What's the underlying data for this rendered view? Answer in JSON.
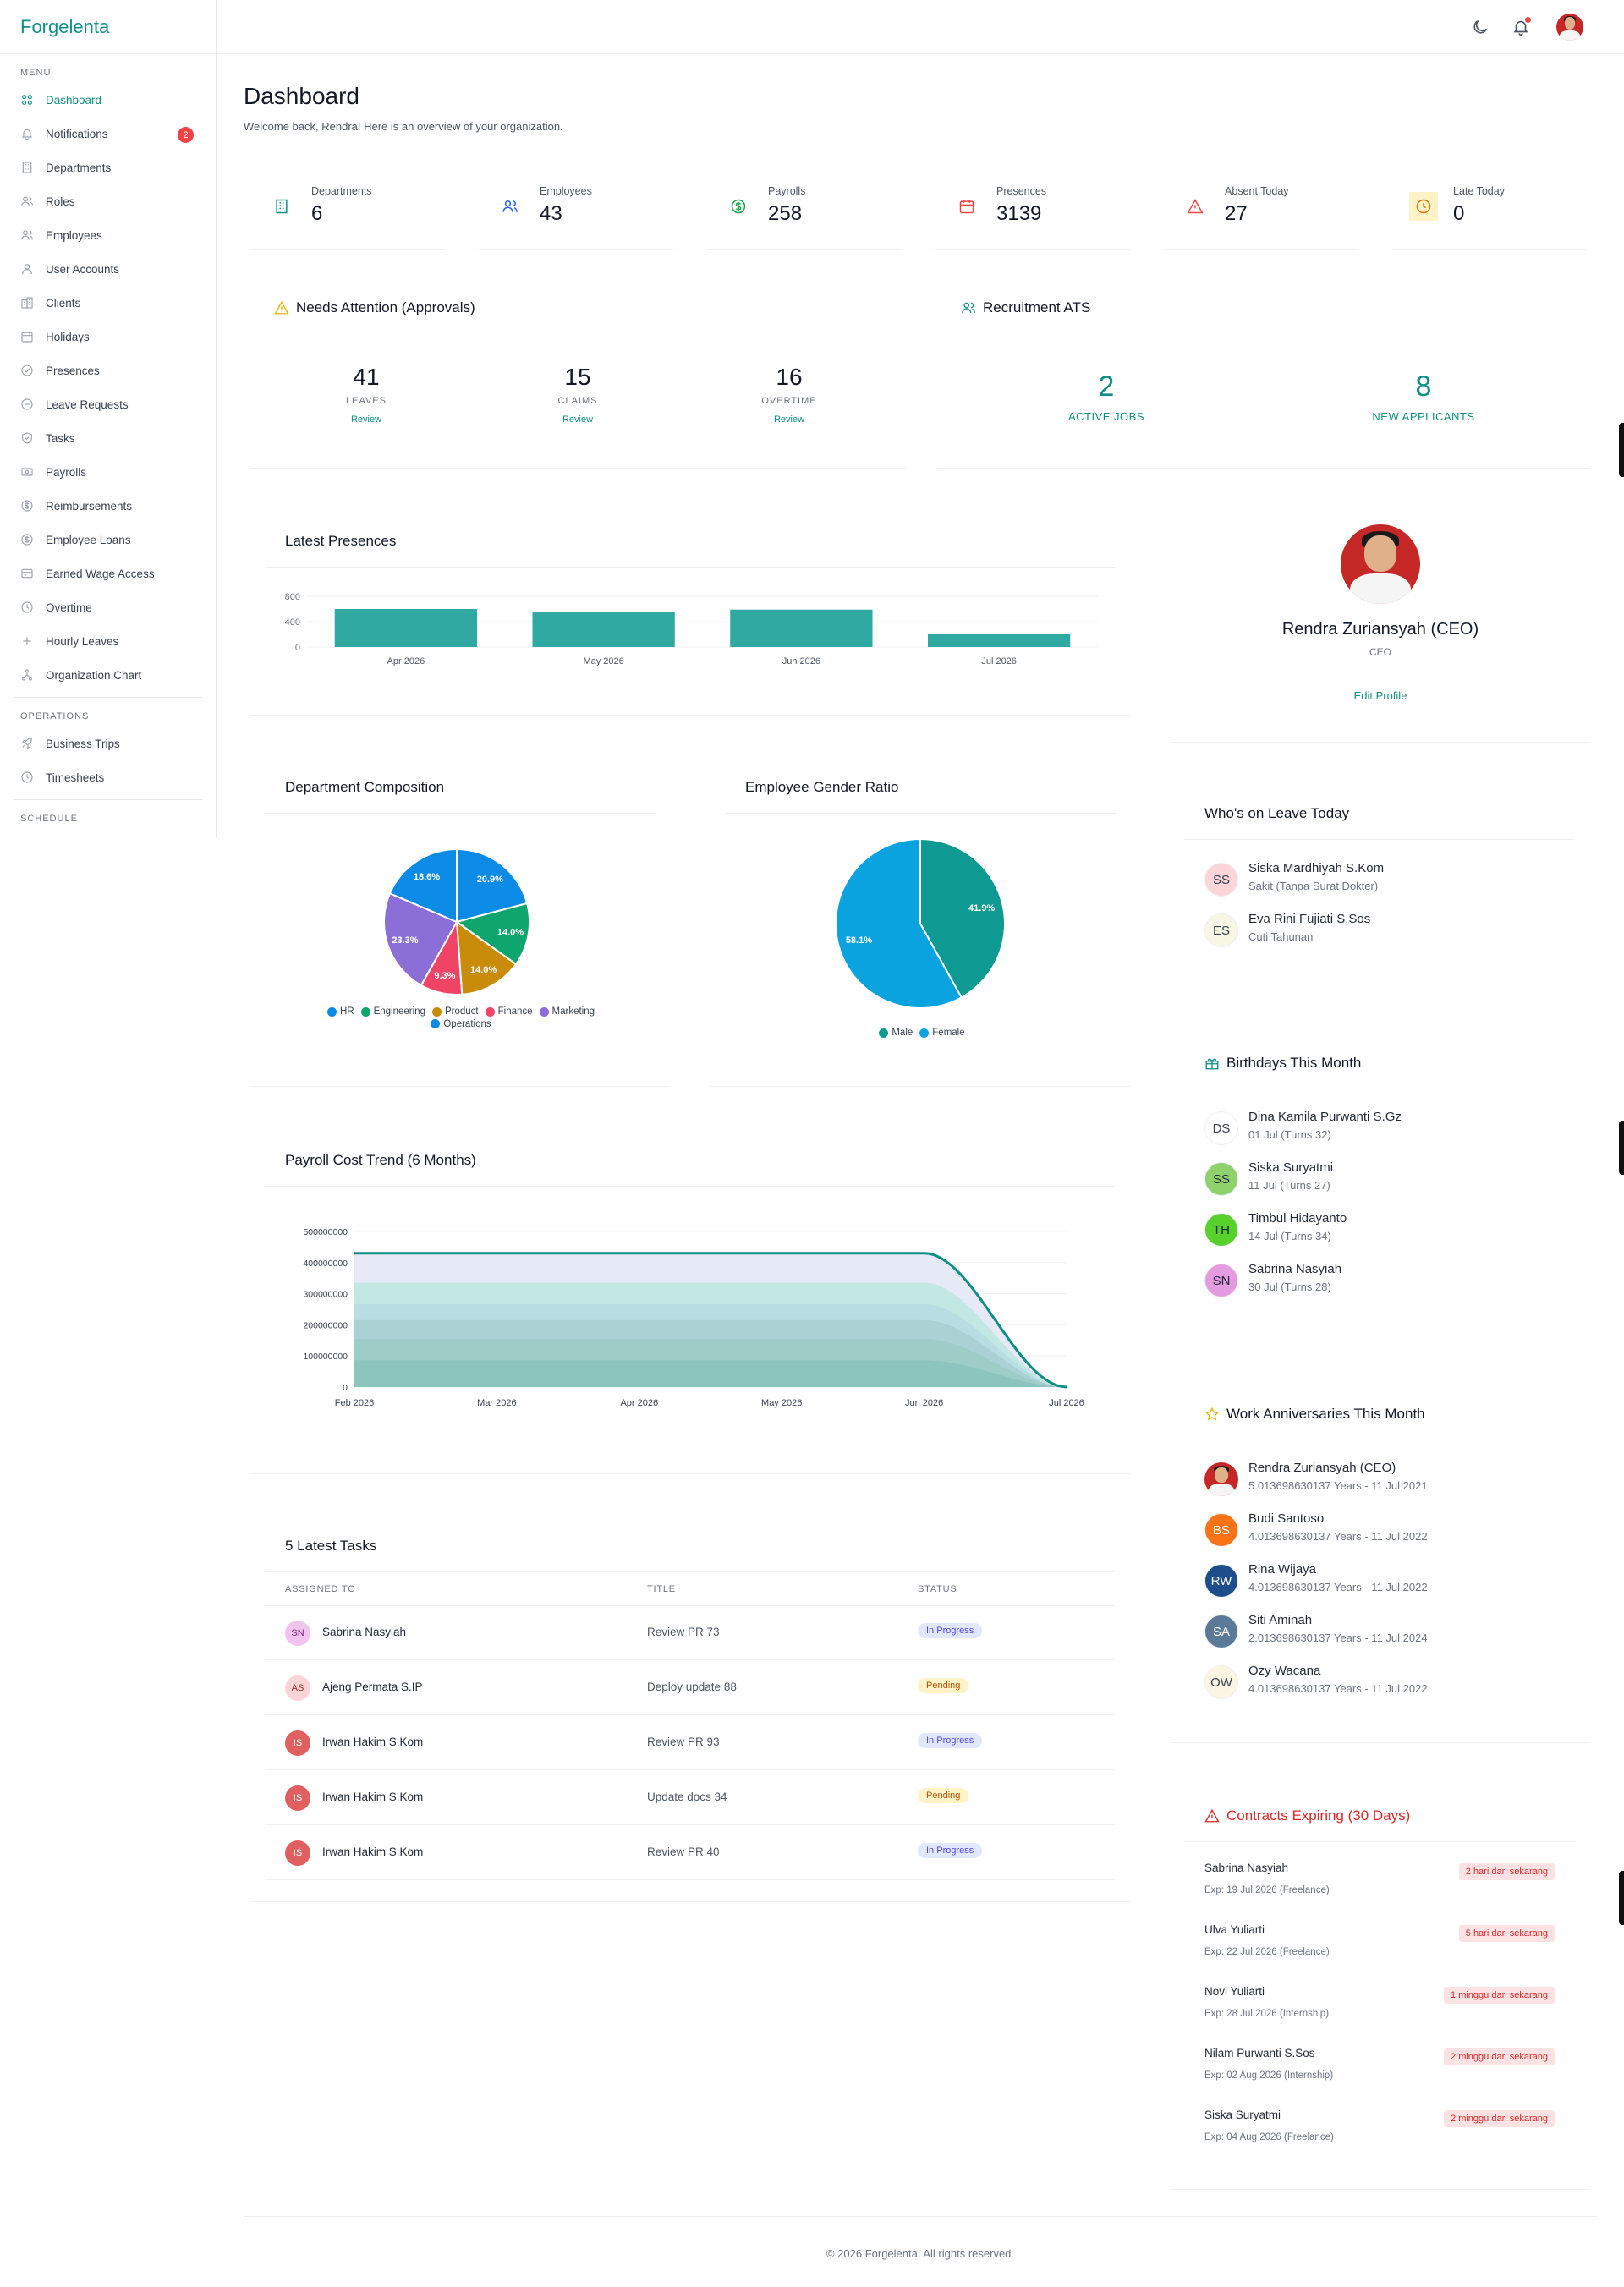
{
  "app": {
    "name": "Forgelenta"
  },
  "sidebar": {
    "menu_label": "MENU",
    "items": [
      {
        "label": "Dashboard",
        "icon": "grid-icon"
      },
      {
        "label": "Notifications",
        "icon": "bell-icon",
        "badge": "2"
      },
      {
        "label": "Departments",
        "icon": "building-icon"
      },
      {
        "label": "Roles",
        "icon": "users-icon"
      },
      {
        "label": "Employees",
        "icon": "people-icon"
      },
      {
        "label": "User Accounts",
        "icon": "user-icon"
      },
      {
        "label": "Clients",
        "icon": "office-icon"
      },
      {
        "label": "Holidays",
        "icon": "calendar-icon"
      },
      {
        "label": "Presences",
        "icon": "check-circle-icon"
      },
      {
        "label": "Leave Requests",
        "icon": "minus-circle-icon"
      },
      {
        "label": "Tasks",
        "icon": "shield-icon"
      },
      {
        "label": "Payrolls",
        "icon": "money-icon"
      },
      {
        "label": "Reimbursements",
        "icon": "dollar-circle-icon"
      },
      {
        "label": "Employee Loans",
        "icon": "dollar-circle-icon"
      },
      {
        "label": "Earned Wage Access",
        "icon": "card-icon"
      },
      {
        "label": "Overtime",
        "icon": "clock-icon"
      },
      {
        "label": "Hourly Leaves",
        "icon": "plus-icon"
      },
      {
        "label": "Organization Chart",
        "icon": "org-chart-icon"
      }
    ],
    "operations_label": "OPERATIONS",
    "operations": [
      {
        "label": "Business Trips",
        "icon": "rocket-icon"
      },
      {
        "label": "Timesheets",
        "icon": "clock-icon"
      }
    ],
    "schedule_label": "SCHEDULE"
  },
  "header": {
    "title": "Dashboard",
    "subtitle": "Welcome back, Rendra! Here is an overview of your organization."
  },
  "stats": [
    {
      "label": "Departments",
      "value": "6",
      "icon": "building-icon",
      "color": "#0f8f86"
    },
    {
      "label": "Employees",
      "value": "43",
      "icon": "people-icon",
      "color": "#2563eb"
    },
    {
      "label": "Payrolls",
      "value": "258",
      "icon": "dollar-circle-icon",
      "color": "#16a34a"
    },
    {
      "label": "Presences",
      "value": "3139",
      "icon": "calendar-icon",
      "color": "#ef4444"
    },
    {
      "label": "Absent Today",
      "value": "27",
      "icon": "warning-icon",
      "color": "#ef4444"
    },
    {
      "label": "Late Today",
      "value": "0",
      "icon": "clock-icon",
      "color": "#d97706"
    }
  ],
  "attention": {
    "title": "Needs Attention (Approvals)",
    "items": [
      {
        "value": "41",
        "label": "LEAVES",
        "link": "Review"
      },
      {
        "value": "15",
        "label": "CLAIMS",
        "link": "Review"
      },
      {
        "value": "16",
        "label": "OVERTIME",
        "link": "Review"
      }
    ]
  },
  "recruitment": {
    "title": "Recruitment ATS",
    "items": [
      {
        "value": "2",
        "label": "ACTIVE JOBS"
      },
      {
        "value": "8",
        "label": "NEW APPLICANTS"
      }
    ]
  },
  "profile": {
    "name": "Rendra Zuriansyah (CEO)",
    "role": "CEO",
    "edit": "Edit Profile"
  },
  "presences_chart": {
    "title": "Latest Presences",
    "chart_data": {
      "type": "bar",
      "categories": [
        "Apr 2026",
        "May 2026",
        "Jun 2026",
        "Jul 2026"
      ],
      "values": [
        600,
        550,
        590,
        200
      ],
      "yticks": [
        "800",
        "400",
        "0"
      ],
      "ylim": [
        0,
        800
      ],
      "color": "#2fa9a2"
    }
  },
  "dept_chart": {
    "title": "Department Composition",
    "chart_data": {
      "type": "pie",
      "labels": [
        "HR",
        "Engineering",
        "Product",
        "Finance",
        "Marketing",
        "Operations"
      ],
      "values": [
        20.9,
        14.0,
        14.0,
        9.3,
        23.3,
        18.6
      ],
      "value_labels": [
        "20.9%",
        "14.0%",
        "14.0%",
        "9.3%",
        "23.3%",
        "18.6%"
      ],
      "colors": [
        "#0b8ae6",
        "#0ea66d",
        "#c98b0a",
        "#ef4465",
        "#8b6fd6",
        "#0b8ae6"
      ],
      "legend": [
        "HR",
        "Engineering",
        "Product",
        "Finance",
        "Marketing",
        "Operations"
      ]
    }
  },
  "gender_chart": {
    "title": "Employee Gender Ratio",
    "chart_data": {
      "type": "pie",
      "labels": [
        "Male",
        "Female"
      ],
      "values": [
        41.9,
        58.1
      ],
      "value_labels": [
        "41.9%",
        "58.1%"
      ],
      "colors": [
        "#0e9a92",
        "#0aa3e0"
      ]
    }
  },
  "payroll_chart": {
    "title": "Payroll Cost Trend (6 Months)",
    "chart_data": {
      "type": "area",
      "categories": [
        "Feb 2026",
        "Mar 2026",
        "Apr 2026",
        "May 2026",
        "Jun 2026",
        "Jul 2026"
      ],
      "yticks": [
        "500000000",
        "400000000",
        "300000000",
        "200000000",
        "100000000",
        "0"
      ],
      "ylim": [
        0,
        500000000
      ],
      "series_top": [
        430000000,
        430000000,
        430000000,
        430000000,
        430000000,
        0
      ]
    }
  },
  "tasks": {
    "title": "5 Latest Tasks",
    "columns": [
      "ASSIGNED TO",
      "TITLE",
      "STATUS"
    ],
    "rows": [
      {
        "initials": "SN",
        "name": "Sabrina Nasyiah",
        "title": "Review PR 73",
        "status": "In Progress",
        "avatar_bg": "#f0c4ee",
        "avatar_fg": "#7a2a78"
      },
      {
        "initials": "AS",
        "name": "Ajeng Permata S.IP",
        "title": "Deploy update 88",
        "status": "Pending",
        "avatar_bg": "#fbd5d5",
        "avatar_fg": "#9b2c2c"
      },
      {
        "initials": "IS",
        "name": "Irwan Hakim S.Kom",
        "title": "Review PR 93",
        "status": "In Progress",
        "avatar_bg": "#e06060",
        "avatar_fg": "#ffffff"
      },
      {
        "initials": "IS",
        "name": "Irwan Hakim S.Kom",
        "title": "Update docs 34",
        "status": "Pending",
        "avatar_bg": "#e06060",
        "avatar_fg": "#ffffff"
      },
      {
        "initials": "IS",
        "name": "Irwan Hakim S.Kom",
        "title": "Review PR 40",
        "status": "In Progress",
        "avatar_bg": "#e06060",
        "avatar_fg": "#ffffff"
      }
    ]
  },
  "leave_today": {
    "title": "Who's on Leave Today",
    "people": [
      {
        "initials": "SS",
        "name": "Siska Mardhiyah S.Kom",
        "sub": "Sakit (Tanpa Surat Dokter)",
        "bg": "#fbd5d8",
        "fg": "#374151"
      },
      {
        "initials": "ES",
        "name": "Eva Rini Fujiati S.Sos",
        "sub": "Cuti Tahunan",
        "bg": "#f7f7e4",
        "fg": "#374151"
      }
    ]
  },
  "birthdays": {
    "title": "Birthdays This Month",
    "people": [
      {
        "initials": "DS",
        "name": "Dina Kamila Purwanti S.Gz",
        "sub": "01 Jul (Turns 32)",
        "bg": "#ffffff",
        "fg": "#374151"
      },
      {
        "initials": "SS",
        "name": "Siska Suryatmi",
        "sub": "11 Jul (Turns 27)",
        "bg": "#8fd16a",
        "fg": "#1f2937"
      },
      {
        "initials": "TH",
        "name": "Timbul Hidayanto",
        "sub": "14 Jul (Turns 34)",
        "bg": "#57d12c",
        "fg": "#1f2937"
      },
      {
        "initials": "SN",
        "name": "Sabrina Nasyiah",
        "sub": "30 Jul (Turns 28)",
        "bg": "#e59be0",
        "fg": "#1f2937"
      }
    ]
  },
  "anniversaries": {
    "title": "Work Anniversaries This Month",
    "people": [
      {
        "initials": "",
        "name": "Rendra Zuriansyah (CEO)",
        "sub": "5.013698630137 Years - 11 Jul 2021",
        "photo": true
      },
      {
        "initials": "BS",
        "name": "Budi Santoso",
        "sub": "4.013698630137 Years - 11 Jul 2022",
        "bg": "#f97316",
        "fg": "#ffffff"
      },
      {
        "initials": "RW",
        "name": "Rina Wijaya",
        "sub": "4.013698630137 Years - 11 Jul 2022",
        "bg": "#1e4d8c",
        "fg": "#ffffff"
      },
      {
        "initials": "SA",
        "name": "Siti Aminah",
        "sub": "2.013698630137 Years - 11 Jul 2024",
        "bg": "#5b7a99",
        "fg": "#ffffff"
      },
      {
        "initials": "OW",
        "name": "Ozy Wacana",
        "sub": "4.013698630137 Years - 11 Jul 2022",
        "bg": "#fbf5e2",
        "fg": "#374151"
      }
    ]
  },
  "contracts": {
    "title": "Contracts Expiring (30 Days)",
    "items": [
      {
        "name": "Sabrina Nasyiah",
        "exp": "Exp: 19 Jul 2026 (Freelance)",
        "badge": "2 hari dari sekarang"
      },
      {
        "name": "Ulva Yuliarti",
        "exp": "Exp: 22 Jul 2026 (Freelance)",
        "badge": "5 hari dari sekarang"
      },
      {
        "name": "Novi Yuliarti",
        "exp": "Exp: 28 Jul 2026 (Internship)",
        "badge": "1 minggu dari sekarang"
      },
      {
        "name": "Nilam Purwanti S.Sos",
        "exp": "Exp: 02 Aug 2026 (Internship)",
        "badge": "2 minggu dari sekarang"
      },
      {
        "name": "Siska Suryatmi",
        "exp": "Exp: 04 Aug 2026 (Freelance)",
        "badge": "2 minggu dari sekarang"
      }
    ]
  },
  "footer": {
    "text": "© 2026 Forgelenta. All rights reserved."
  }
}
